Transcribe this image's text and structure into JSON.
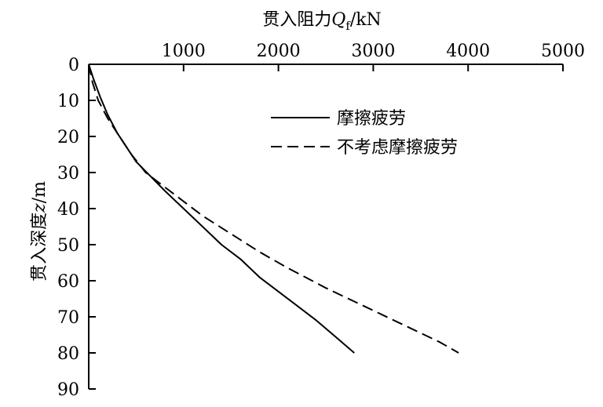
{
  "chart_data": {
    "type": "line",
    "xlabel": {
      "prefix": "贯入阻力",
      "symbol": "Q",
      "subscript": "f",
      "unit": "/kN"
    },
    "ylabel": {
      "prefix": "贯入深度",
      "symbol": "z",
      "unit": "/m"
    },
    "xlim": [
      0,
      5000
    ],
    "ylim": [
      0,
      90
    ],
    "x_ticks": [
      0,
      1000,
      2000,
      3000,
      4000,
      5000
    ],
    "y_ticks": [
      0,
      10,
      20,
      30,
      40,
      50,
      60,
      70,
      80,
      90
    ],
    "x_axis_position": "top",
    "y_axis_inverted": true,
    "grid": false,
    "legend_position": "top-right",
    "series": [
      {
        "name": "摩擦疲劳",
        "style": "solid",
        "color": "#000000",
        "points": [
          [
            0,
            0
          ],
          [
            50,
            4
          ],
          [
            120,
            9
          ],
          [
            200,
            14
          ],
          [
            300,
            19
          ],
          [
            400,
            23
          ],
          [
            500,
            27
          ],
          [
            650,
            31
          ],
          [
            800,
            35
          ],
          [
            1000,
            40
          ],
          [
            1200,
            45
          ],
          [
            1400,
            50
          ],
          [
            1600,
            54
          ],
          [
            1800,
            59
          ],
          [
            2000,
            63
          ],
          [
            2200,
            67
          ],
          [
            2400,
            71
          ],
          [
            2600,
            75.5
          ],
          [
            2800,
            80
          ]
        ]
      },
      {
        "name": "不考虑摩擦疲劳",
        "style": "dashed",
        "color": "#000000",
        "points": [
          [
            0,
            0
          ],
          [
            40,
            5
          ],
          [
            100,
            10
          ],
          [
            200,
            15
          ],
          [
            300,
            19
          ],
          [
            450,
            25
          ],
          [
            600,
            30
          ],
          [
            800,
            34
          ],
          [
            1000,
            38
          ],
          [
            1200,
            42
          ],
          [
            1500,
            47
          ],
          [
            1800,
            52
          ],
          [
            2100,
            56.5
          ],
          [
            2500,
            62
          ],
          [
            2900,
            67
          ],
          [
            3300,
            72
          ],
          [
            3700,
            77
          ],
          [
            3900,
            80
          ]
        ]
      }
    ]
  }
}
